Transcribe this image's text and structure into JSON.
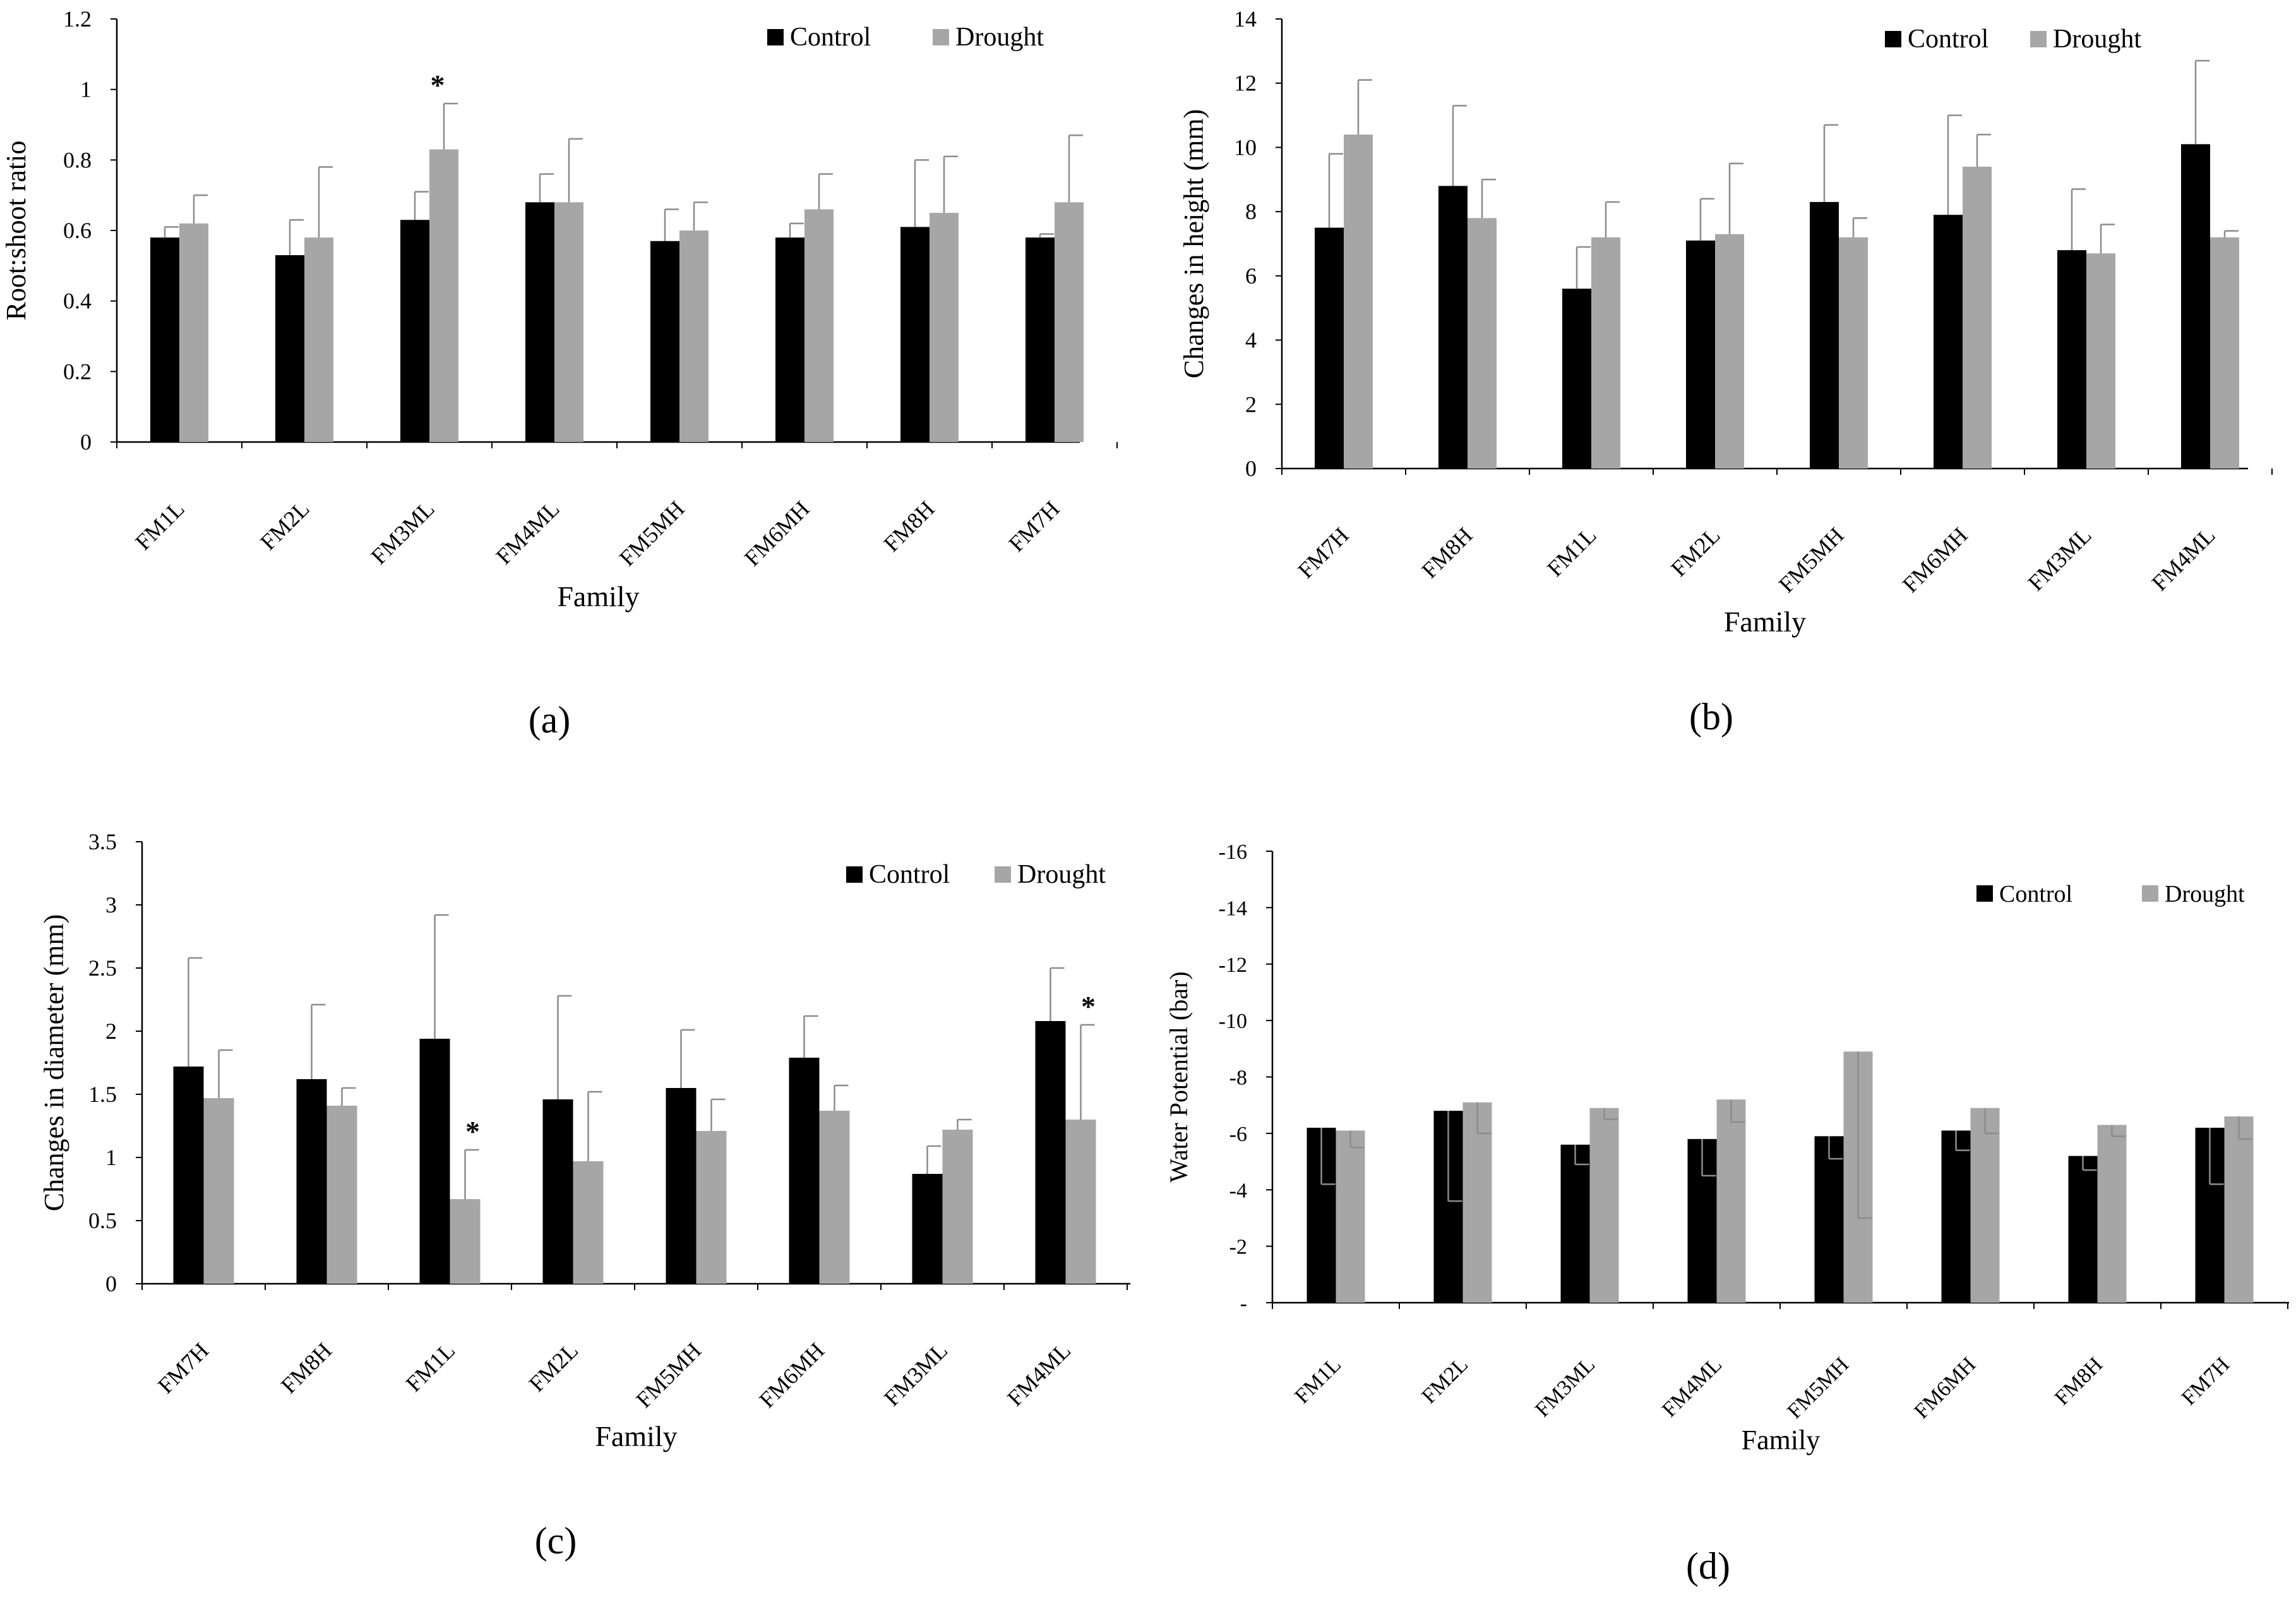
{
  "chart_data": [
    {
      "type": "bar",
      "panel_label": "(a)",
      "title": "",
      "xlabel": "Family",
      "ylabel": "Root:shoot ratio",
      "ylim": [
        0,
        1.2
      ],
      "yticks": [
        "0",
        "0.2",
        "0.4",
        "0.6",
        "0.8",
        "1",
        "1.2"
      ],
      "categories": [
        "FM1L",
        "FM2L",
        "FM3ML",
        "FM4ML",
        "FM5MH",
        "FM6MH",
        "FM8H",
        "FM7H"
      ],
      "series": [
        {
          "name": "Control",
          "color": "#000000",
          "values": [
            0.58,
            0.53,
            0.63,
            0.68,
            0.57,
            0.58,
            0.61,
            0.58
          ],
          "errors": [
            0.03,
            0.1,
            0.08,
            0.08,
            0.09,
            0.04,
            0.19,
            0.01
          ]
        },
        {
          "name": "Drought",
          "color": "#a6a6a6",
          "values": [
            0.62,
            0.58,
            0.83,
            0.68,
            0.6,
            0.66,
            0.65,
            0.68
          ],
          "errors": [
            0.08,
            0.2,
            0.13,
            0.18,
            0.08,
            0.1,
            0.16,
            0.19
          ]
        }
      ],
      "annotations": [
        {
          "text": "*",
          "category": "FM3ML"
        }
      ],
      "legend": "top-right"
    },
    {
      "type": "bar",
      "panel_label": "(b)",
      "title": "",
      "xlabel": "Family",
      "ylabel": "Changes in height (mm)",
      "ylim": [
        0,
        14
      ],
      "yticks": [
        "0",
        "2",
        "4",
        "6",
        "8",
        "10",
        "12",
        "14"
      ],
      "categories": [
        "FM7H",
        "FM8H",
        "FM1L",
        "FM2L",
        "FM5MH",
        "FM6MH",
        "FM3ML",
        "FM4ML"
      ],
      "series": [
        {
          "name": "Control",
          "color": "#000000",
          "values": [
            7.5,
            8.8,
            5.6,
            7.1,
            8.3,
            7.9,
            6.8,
            10.1
          ],
          "errors": [
            2.3,
            2.5,
            1.3,
            1.3,
            2.4,
            3.1,
            1.9,
            2.6
          ]
        },
        {
          "name": "Drought",
          "color": "#a6a6a6",
          "values": [
            10.4,
            7.8,
            7.2,
            7.3,
            7.2,
            9.4,
            6.7,
            7.2
          ],
          "errors": [
            1.7,
            1.2,
            1.1,
            2.2,
            0.6,
            1.0,
            0.9,
            0.2
          ]
        }
      ],
      "annotations": [],
      "legend": "top-right"
    },
    {
      "type": "bar",
      "panel_label": "(c)",
      "title": "",
      "xlabel": "Family",
      "ylabel": "Changes in diameter (mm)",
      "ylim": [
        0,
        3.5
      ],
      "yticks": [
        "0",
        "0.5",
        "1",
        "1.5",
        "2",
        "2.5",
        "3",
        "3.5"
      ],
      "categories": [
        "FM7H",
        "FM8H",
        "FM1L",
        "FM2L",
        "FM5MH",
        "FM6MH",
        "FM3ML",
        "FM4ML"
      ],
      "series": [
        {
          "name": "Control",
          "color": "#000000",
          "values": [
            1.72,
            1.62,
            1.94,
            1.46,
            1.55,
            1.79,
            0.87,
            2.08
          ],
          "errors": [
            0.86,
            0.59,
            0.98,
            0.82,
            0.46,
            0.33,
            0.22,
            0.42
          ]
        },
        {
          "name": "Drought",
          "color": "#a6a6a6",
          "values": [
            1.47,
            1.41,
            0.67,
            0.97,
            1.21,
            1.37,
            1.22,
            1.3
          ],
          "errors": [
            0.38,
            0.14,
            0.39,
            0.55,
            0.25,
            0.2,
            0.08,
            0.75
          ]
        }
      ],
      "annotations": [
        {
          "text": "*",
          "category": "FM1L"
        },
        {
          "text": "*",
          "category": "FM4ML"
        }
      ],
      "legend": "top-right"
    },
    {
      "type": "bar",
      "panel_label": "(d)",
      "title": "",
      "xlabel": "Family",
      "ylabel": "Water Potential (bar)",
      "ylim": [
        0,
        -16
      ],
      "yticks": [
        "-",
        "-2",
        "-4",
        "-6",
        "-8",
        "-10",
        "-12",
        "-14",
        "-16"
      ],
      "categories": [
        "FM1L",
        "FM2L",
        "FM3ML",
        "FM4ML",
        "FM5MH",
        "FM6MH",
        "FM8H",
        "FM7H"
      ],
      "series": [
        {
          "name": "Control",
          "color": "#000000",
          "values": [
            -6.2,
            -6.8,
            -5.6,
            -5.8,
            -5.9,
            -6.1,
            -5.2,
            -6.2
          ],
          "errors": [
            2.0,
            3.2,
            0.7,
            1.3,
            0.8,
            0.7,
            0.5,
            2.0
          ]
        },
        {
          "name": "Drought",
          "color": "#a6a6a6",
          "values": [
            -6.1,
            -7.1,
            -6.9,
            -7.2,
            -8.9,
            -6.9,
            -6.3,
            -6.6
          ],
          "errors": [
            0.6,
            1.1,
            0.4,
            0.8,
            5.9,
            0.9,
            0.4,
            0.8
          ]
        }
      ],
      "annotations": [],
      "legend": "top-right"
    }
  ]
}
